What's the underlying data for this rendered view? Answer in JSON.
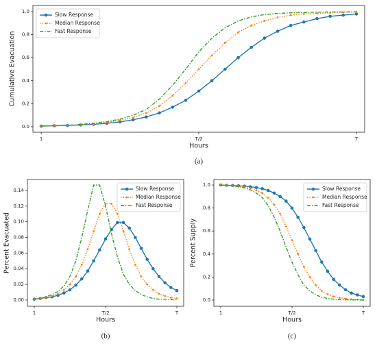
{
  "chart_data": [
    {
      "type": "line",
      "caption": "(a)",
      "xlabel": "Hours",
      "ylabel": "Cumulative Evacuation",
      "legend": "upper left",
      "x": [
        1,
        2,
        3,
        4,
        5,
        6,
        7,
        8,
        9,
        10,
        11,
        12,
        13,
        14,
        15,
        16,
        17,
        18,
        19,
        20,
        21,
        22,
        23,
        24,
        25
      ],
      "xlim": [
        0.37,
        25.63
      ],
      "xticks": [
        1,
        {
          "value": 13,
          "label": "T/2"
        },
        {
          "value": 25,
          "label": "T"
        }
      ],
      "ylim": [
        -0.048,
        1.054
      ],
      "yticks": [
        {
          "value": 0,
          "label": "0.0"
        },
        {
          "value": 0.2,
          "label": "0.2"
        },
        {
          "value": 0.4,
          "label": "0.4"
        },
        {
          "value": 0.6,
          "label": "0.6"
        },
        {
          "value": 0.8,
          "label": "0.8"
        },
        {
          "value": 1,
          "label": "1.0"
        }
      ],
      "series": [
        {
          "name": "Slow Response",
          "color": "#1f77b4",
          "linestyle": "solid",
          "marker": "circle",
          "values": [
            0.005,
            0.008,
            0.011,
            0.015,
            0.021,
            0.03,
            0.042,
            0.06,
            0.085,
            0.12,
            0.17,
            0.23,
            0.31,
            0.4,
            0.5,
            0.6,
            0.69,
            0.77,
            0.83,
            0.88,
            0.91,
            0.94,
            0.96,
            0.97,
            0.98
          ]
        },
        {
          "name": "Median Response",
          "color": "#ff7f0e",
          "linestyle": "dotted",
          "marker": "dot",
          "values": [
            0.006,
            0.008,
            0.012,
            0.017,
            0.025,
            0.037,
            0.055,
            0.08,
            0.12,
            0.18,
            0.27,
            0.38,
            0.5,
            0.62,
            0.73,
            0.82,
            0.88,
            0.92,
            0.95,
            0.97,
            0.98,
            0.985,
            0.99,
            0.995,
            0.997
          ]
        },
        {
          "name": "Fast Response",
          "color": "#2ca02c",
          "linestyle": "dashdot",
          "marker": "none",
          "values": [
            0.006,
            0.009,
            0.013,
            0.02,
            0.03,
            0.045,
            0.065,
            0.1,
            0.15,
            0.24,
            0.36,
            0.5,
            0.65,
            0.77,
            0.86,
            0.92,
            0.955,
            0.975,
            0.985,
            0.99,
            0.993,
            0.996,
            0.997,
            0.998,
            0.999
          ]
        }
      ]
    },
    {
      "type": "line",
      "caption": "(b)",
      "xlabel": "Hours",
      "ylabel": "Percent Evacuated",
      "legend": "upper right",
      "x": [
        1,
        2,
        3,
        4,
        5,
        6,
        7,
        8,
        9,
        10,
        11,
        12,
        13,
        14,
        15,
        16,
        17,
        18,
        19,
        20,
        21,
        22,
        23,
        24,
        25
      ],
      "xlim": [
        -0.15,
        26.15
      ],
      "xticks": [
        1,
        {
          "value": 13,
          "label": "T/2"
        },
        {
          "value": 25,
          "label": "T"
        }
      ],
      "ylim": [
        -0.008,
        0.154
      ],
      "yticks": [
        {
          "value": 0,
          "label": "0.00"
        },
        {
          "value": 0.02,
          "label": "0.02"
        },
        {
          "value": 0.04,
          "label": "0.04"
        },
        {
          "value": 0.06,
          "label": "0.06"
        },
        {
          "value": 0.08,
          "label": "0.08"
        },
        {
          "value": 0.1,
          "label": "0.10"
        },
        {
          "value": 0.12,
          "label": "0.12"
        },
        {
          "value": 0.14,
          "label": "0.14"
        }
      ],
      "series": [
        {
          "name": "Slow Response",
          "color": "#1f77b4",
          "linestyle": "solid",
          "marker": "circle",
          "values": [
            0.001,
            0.002,
            0.003,
            0.004,
            0.006,
            0.009,
            0.013,
            0.019,
            0.027,
            0.037,
            0.05,
            0.064,
            0.078,
            0.09,
            0.099,
            0.099,
            0.092,
            0.08,
            0.066,
            0.052,
            0.04,
            0.03,
            0.022,
            0.016,
            0.012
          ]
        },
        {
          "name": "Median Response",
          "color": "#ff7f0e",
          "linestyle": "dotted",
          "marker": "dot",
          "values": [
            0.001,
            0.002,
            0.003,
            0.005,
            0.008,
            0.013,
            0.02,
            0.03,
            0.045,
            0.065,
            0.088,
            0.11,
            0.123,
            0.123,
            0.11,
            0.088,
            0.065,
            0.045,
            0.03,
            0.02,
            0.013,
            0.008,
            0.005,
            0.003,
            0.002
          ]
        },
        {
          "name": "Fast Response",
          "color": "#2ca02c",
          "linestyle": "dashdot",
          "marker": "none",
          "values": [
            0.001,
            0.002,
            0.004,
            0.007,
            0.011,
            0.018,
            0.03,
            0.05,
            0.08,
            0.115,
            0.147,
            0.147,
            0.12,
            0.085,
            0.055,
            0.033,
            0.02,
            0.012,
            0.007,
            0.004,
            0.002,
            0.001,
            0.001,
            0.0005,
            0.0003
          ]
        }
      ]
    },
    {
      "type": "line",
      "caption": "(c)",
      "xlabel": "Hours",
      "ylabel": "Percent Supply",
      "legend": "upper right",
      "x": [
        1,
        2,
        3,
        4,
        5,
        6,
        7,
        8,
        9,
        10,
        11,
        12,
        13,
        14,
        15,
        16,
        17,
        18,
        19,
        20,
        21,
        22,
        23,
        24,
        25
      ],
      "xlim": [
        -0.15,
        26.15
      ],
      "xticks": [
        1,
        {
          "value": 13,
          "label": "T/2"
        },
        {
          "value": 25,
          "label": "T"
        }
      ],
      "ylim": [
        -0.054,
        1.048
      ],
      "yticks": [
        {
          "value": 0,
          "label": "0.0"
        },
        {
          "value": 0.2,
          "label": "0.2"
        },
        {
          "value": 0.4,
          "label": "0.4"
        },
        {
          "value": 0.6,
          "label": "0.6"
        },
        {
          "value": 0.8,
          "label": "0.8"
        },
        {
          "value": 1,
          "label": "1.0"
        }
      ],
      "series": [
        {
          "name": "Slow Response",
          "color": "#1f77b4",
          "linestyle": "solid",
          "marker": "circle",
          "values": [
            1.0,
            0.998,
            0.996,
            0.993,
            0.99,
            0.985,
            0.978,
            0.968,
            0.953,
            0.93,
            0.9,
            0.86,
            0.8,
            0.72,
            0.63,
            0.53,
            0.43,
            0.33,
            0.25,
            0.18,
            0.13,
            0.09,
            0.06,
            0.045,
            0.03
          ]
        },
        {
          "name": "Median Response",
          "color": "#ff7f0e",
          "linestyle": "dotted",
          "marker": "dot",
          "values": [
            1.0,
            0.998,
            0.995,
            0.99,
            0.983,
            0.972,
            0.955,
            0.93,
            0.89,
            0.83,
            0.75,
            0.64,
            0.52,
            0.4,
            0.29,
            0.2,
            0.13,
            0.08,
            0.05,
            0.03,
            0.02,
            0.012,
            0.008,
            0.005,
            0.003
          ]
        },
        {
          "name": "Fast Response",
          "color": "#2ca02c",
          "linestyle": "dashdot",
          "marker": "none",
          "values": [
            1.0,
            0.997,
            0.993,
            0.986,
            0.975,
            0.958,
            0.93,
            0.89,
            0.82,
            0.72,
            0.6,
            0.46,
            0.33,
            0.22,
            0.13,
            0.08,
            0.045,
            0.025,
            0.014,
            0.008,
            0.004,
            0.002,
            0.001,
            0.0005,
            0.0002
          ]
        }
      ]
    }
  ]
}
